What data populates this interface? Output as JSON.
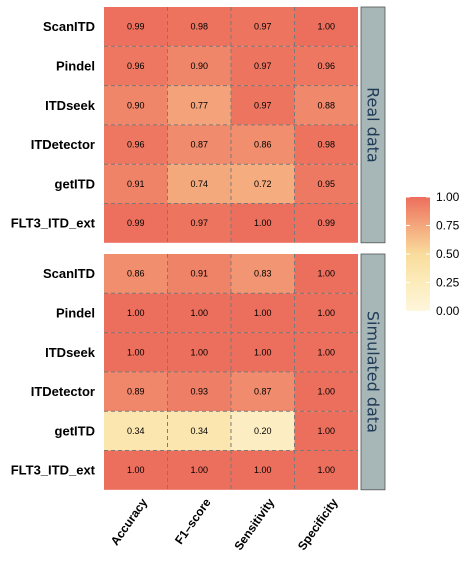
{
  "chart_data": {
    "type": "heatmap",
    "columns": [
      "Accuracy",
      "F1–score",
      "Sensitivity",
      "Specificity"
    ],
    "panels": [
      {
        "label": "Real data",
        "rows": [
          "ScanITD",
          "Pindel",
          "ITDseek",
          "ITDetector",
          "getITD",
          "FLT3_ITD_ext"
        ],
        "values": [
          [
            0.99,
            0.98,
            0.97,
            1.0
          ],
          [
            0.96,
            0.9,
            0.97,
            0.96
          ],
          [
            0.9,
            0.77,
            0.97,
            0.88
          ],
          [
            0.96,
            0.87,
            0.86,
            0.98
          ],
          [
            0.91,
            0.74,
            0.72,
            0.95
          ],
          [
            0.99,
            0.97,
            1.0,
            0.99
          ]
        ]
      },
      {
        "label": "Simulated data",
        "rows": [
          "ScanITD",
          "Pindel",
          "ITDseek",
          "ITDetector",
          "getITD",
          "FLT3_ITD_ext"
        ],
        "values": [
          [
            0.86,
            0.91,
            0.83,
            1.0
          ],
          [
            1.0,
            1.0,
            1.0,
            1.0
          ],
          [
            1.0,
            1.0,
            1.0,
            1.0
          ],
          [
            0.89,
            0.93,
            0.87,
            1.0
          ],
          [
            0.34,
            0.34,
            0.2,
            1.0
          ],
          [
            1.0,
            1.0,
            1.0,
            1.0
          ]
        ]
      }
    ],
    "legend": {
      "ticks": [
        "1.00",
        "0.75",
        "0.50",
        "0.25",
        "0.00"
      ],
      "tick_values": [
        1.0,
        0.75,
        0.5,
        0.25,
        0.0
      ],
      "placement": "right"
    },
    "color_scale": {
      "range": [
        0,
        1
      ],
      "stops": [
        {
          "value": 0.0,
          "color": "#fef6dc"
        },
        {
          "value": 0.25,
          "color": "#fcecbb"
        },
        {
          "value": 0.5,
          "color": "#f9dc9c"
        },
        {
          "value": 0.75,
          "color": "#f4a77c"
        },
        {
          "value": 1.0,
          "color": "#ec6e5c"
        }
      ]
    },
    "colors": {
      "strip_fill": "#a7b6b6",
      "grid_line": "#7a7a7a"
    }
  }
}
